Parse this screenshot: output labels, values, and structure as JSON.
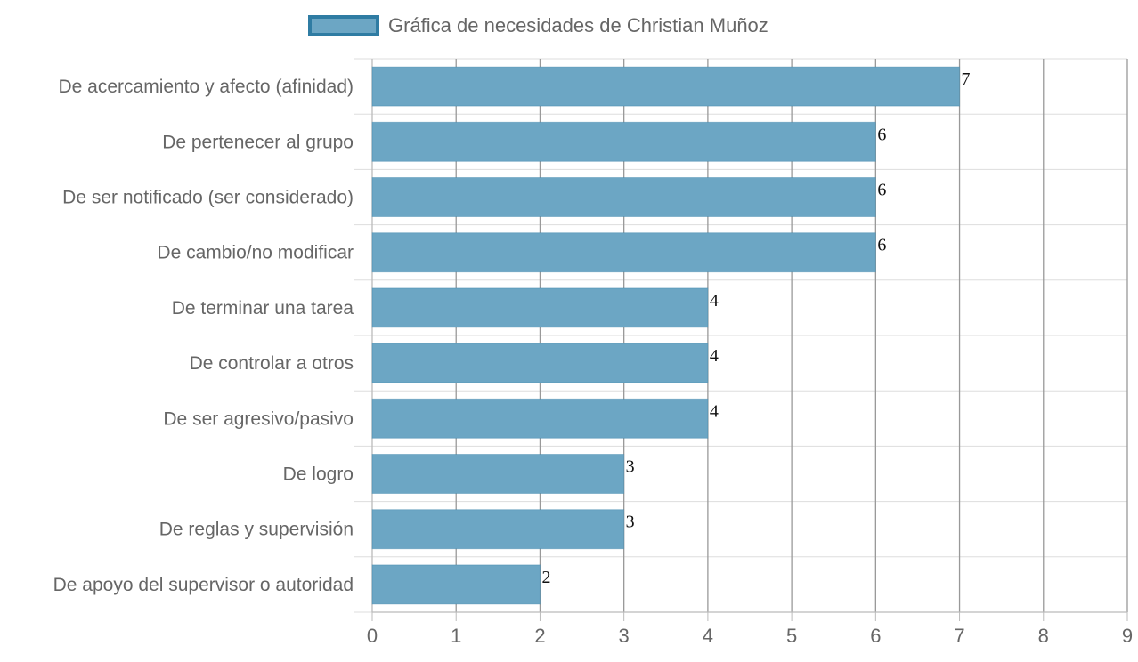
{
  "chart_data": {
    "type": "bar",
    "orientation": "horizontal",
    "categories": [
      "De acercamiento y afecto (afinidad)",
      "De pertenecer al grupo",
      "De ser notificado (ser considerado)",
      "De cambio/no modificar",
      "De terminar una tarea",
      "De controlar a otros",
      "De ser agresivo/pasivo",
      "De logro",
      "De reglas y supervisión",
      "De apoyo del supervisor o autoridad"
    ],
    "series": [
      {
        "name": "Gráfica de necesidades de Christian Muñoz",
        "values": [
          7,
          6,
          6,
          6,
          4,
          4,
          4,
          3,
          3,
          2
        ],
        "color": "#6ca6c4",
        "border_color": "#2f7ca3"
      }
    ],
    "xlim": [
      0,
      9
    ],
    "xticks": [
      "0",
      "1",
      "2",
      "3",
      "4",
      "5",
      "6",
      "7",
      "8",
      "9"
    ],
    "grid": true,
    "legend_position": "top",
    "data_labels": true
  }
}
